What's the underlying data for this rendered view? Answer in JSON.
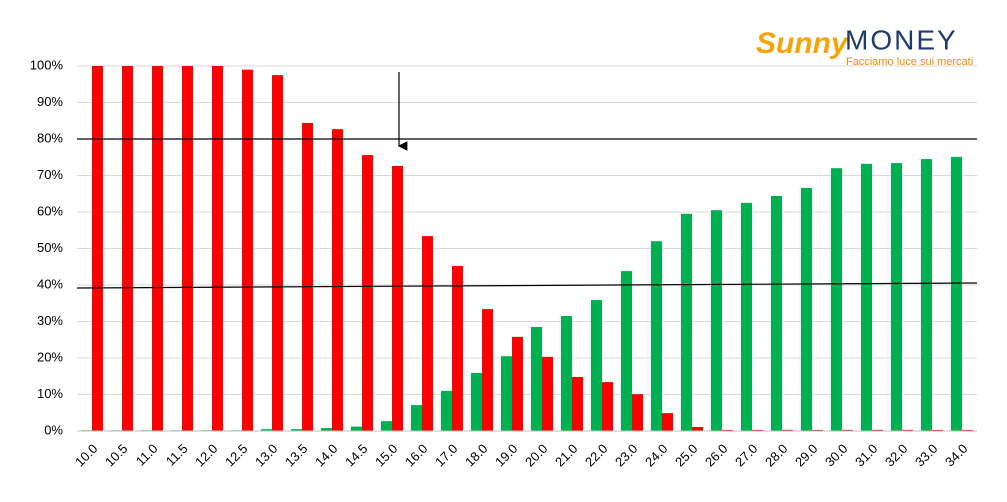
{
  "chart_data": {
    "type": "bar",
    "logo": {
      "brand": "Sunny",
      "name": "MONEY",
      "tagline": "Facciamo luce sui mercati"
    },
    "categories": [
      "10.0",
      "10.5",
      "11.0",
      "11.5",
      "12.0",
      "12.5",
      "13.0",
      "13.5",
      "14.0",
      "14.5",
      "15.0",
      "16.0",
      "17.0",
      "18.0",
      "19.0",
      "20.0",
      "21.0",
      "22.0",
      "23.0",
      "24.0",
      "25.0",
      "26.0",
      "27.0",
      "28.0",
      "29.0",
      "30.0",
      "31.0",
      "32.0",
      "33.0",
      "34.0"
    ],
    "series": [
      {
        "color": "#00b050",
        "values": [
          0.2,
          0.2,
          0.2,
          0.2,
          0.2,
          0.2,
          0.5,
          0.5,
          0.8,
          1.2,
          2.7,
          7.1,
          11,
          15.9,
          20.5,
          28.5,
          31.5,
          35.9,
          43.8,
          52,
          59.5,
          60.5,
          62.5,
          64.4,
          66.6,
          72,
          73.2,
          73.4,
          74.5,
          75.1
        ]
      },
      {
        "color": "#ff0000",
        "values": [
          100,
          100,
          100,
          100,
          100,
          99,
          97.5,
          84.4,
          82.7,
          75.6,
          72.6,
          53.4,
          45.2,
          33.4,
          25.8,
          20.3,
          14.8,
          13.4,
          10.1,
          4.9,
          1.1,
          0.3,
          0.3,
          0.3,
          0.3,
          0.3,
          0.3,
          0.3,
          0.3,
          0.3
        ]
      }
    ],
    "ylim": [
      0,
      100
    ],
    "yticks": [
      {
        "value": 0,
        "label": "0%"
      },
      {
        "value": 10,
        "label": "10%"
      },
      {
        "value": 20,
        "label": "20%"
      },
      {
        "value": 30,
        "label": "30%"
      },
      {
        "value": 40,
        "label": "40%"
      },
      {
        "value": 50,
        "label": "50%"
      },
      {
        "value": 60,
        "label": "60%"
      },
      {
        "value": 70,
        "label": "70%"
      },
      {
        "value": 80,
        "label": "80%"
      },
      {
        "value": 90,
        "label": "90%"
      },
      {
        "value": 100,
        "label": "100%"
      }
    ],
    "grid": true
  }
}
